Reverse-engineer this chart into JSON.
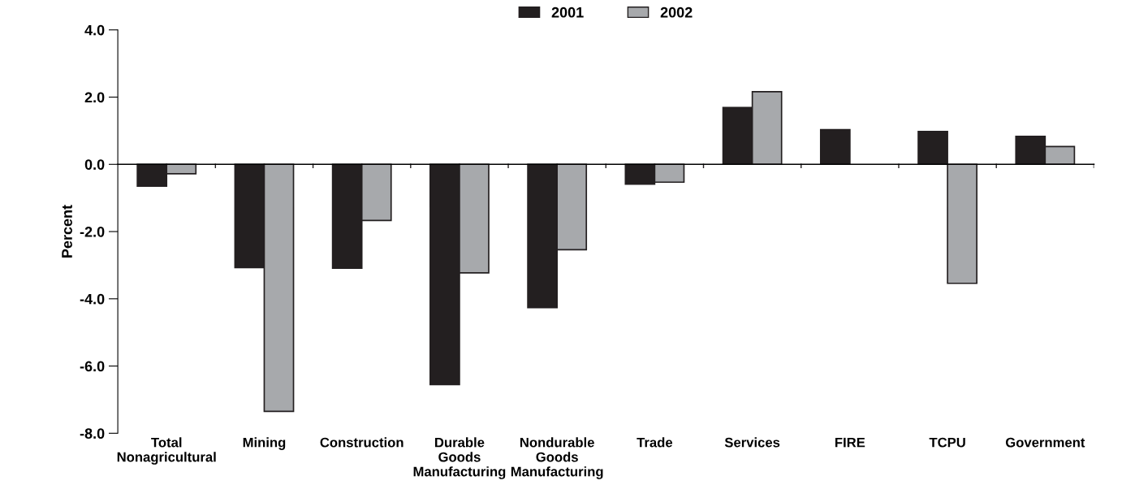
{
  "chart_data": {
    "type": "bar",
    "ylabel": "Percent",
    "categories": [
      "Total\nNonagricultural",
      "Mining",
      "Construction",
      "Durable\nGoods\nManufacturing",
      "Nondurable\nGoods\nManufacturing",
      "Trade",
      "Services",
      "FIRE",
      "TCPU",
      "Government"
    ],
    "series": [
      {
        "name": "2001",
        "color": "#231f20",
        "values": [
          -0.65,
          -3.07,
          -3.09,
          -6.55,
          -4.26,
          -0.59,
          1.69,
          1.03,
          0.98,
          0.83
        ]
      },
      {
        "name": "2002",
        "color": "#a7a9ac",
        "values": [
          -0.28,
          -7.35,
          -1.67,
          -3.23,
          -2.54,
          -0.53,
          2.16,
          null,
          -3.54,
          0.53
        ]
      }
    ],
    "ylim": [
      -8,
      4
    ],
    "yticks": [
      {
        "value": -8,
        "label": "-8.0"
      },
      {
        "value": -6,
        "label": "-6.0"
      },
      {
        "value": -4,
        "label": "-4.0"
      },
      {
        "value": -2,
        "label": "-2.0"
      },
      {
        "value": 0,
        "label": "0.0"
      },
      {
        "value": 2,
        "label": "2.0"
      },
      {
        "value": 4,
        "label": "4.0"
      }
    ],
    "legend": "top"
  }
}
